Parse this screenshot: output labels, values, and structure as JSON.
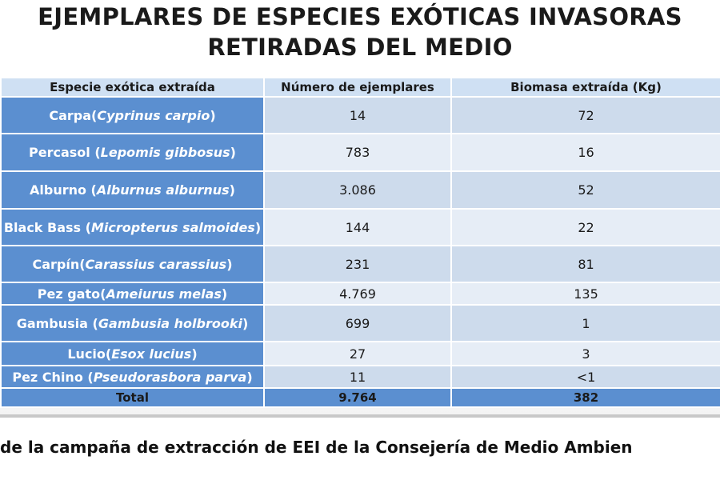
{
  "title": {
    "line1": "EJEMPLARES DE ESPECIES EXÓTICAS INVASORAS",
    "line2": "RETIRADAS DEL MEDIO"
  },
  "table": {
    "headers": [
      "Especie exótica extraída",
      "Número de ejemplares",
      "Biomasa extraída (Kg)"
    ],
    "rows": [
      {
        "name": "Carpa(",
        "latin": "Cyprinus carpio",
        "close": ")",
        "count": "14",
        "biomass": "72"
      },
      {
        "name": "Percasol (",
        "latin": "Lepomis gibbosus",
        "close": ")",
        "count": "783",
        "biomass": "16"
      },
      {
        "name": "Alburno (",
        "latin": "Alburnus alburnus",
        "close": ")",
        "count": "3.086",
        "biomass": "52"
      },
      {
        "name": "Black Bass (",
        "latin": "Micropterus salmoides",
        "close": ")",
        "count": "144",
        "biomass": "22"
      },
      {
        "name": "Carpín(",
        "latin": "Carassius carassius",
        "close": ")",
        "count": "231",
        "biomass": "81"
      },
      {
        "name": "Pez gato(",
        "latin": "Ameiurus melas",
        "close": ")",
        "count": "4.769",
        "biomass": "135"
      },
      {
        "name": "Gambusia (",
        "latin": "Gambusia holbrooki",
        "close": ")",
        "count": "699",
        "biomass": "1"
      },
      {
        "name": "Lucio(",
        "latin": "Esox lucius",
        "close": ")",
        "count": "27",
        "biomass": "3"
      },
      {
        "name": "Pez Chino (",
        "latin": "Pseudorasbora parva",
        "close": ")",
        "count": "11",
        "biomass": "<1"
      }
    ],
    "total": {
      "label": "Total",
      "count": "9.764",
      "biomass": "382"
    }
  },
  "caption": "de la campaña de extracción de EEI de la Consejería de Medio Ambien",
  "colors": {
    "species_cell": "#5b8fd0",
    "header_row": "#cfe0f3",
    "band_a": "#cddbec",
    "band_b": "#e6edf6"
  }
}
